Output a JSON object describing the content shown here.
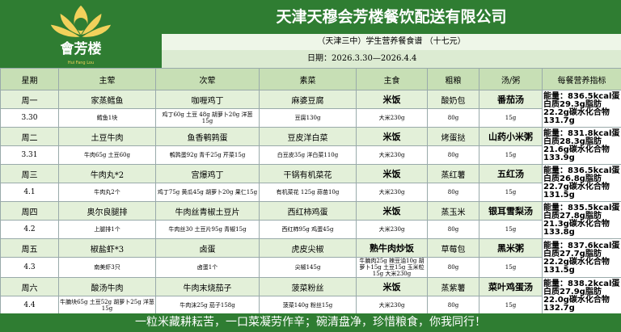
{
  "header": {
    "logo_text": "會芳楼",
    "logo_sub": "Hui Fang Lou",
    "title": "天津天穆会芳楼餐饮配送有限公司",
    "subtitle": "（天津三中）学生营养餐食谱 （十七元）",
    "date": "日期：2026.3.30—2026.4.4"
  },
  "table": {
    "columns": [
      "星期",
      "主荤",
      "次荤",
      "素菜",
      "主食",
      "粗粮",
      "汤/粥",
      "每餐营养指标"
    ],
    "days": [
      {
        "day": "周一",
        "date": "3.30",
        "dishes": [
          "家蒸鳕鱼",
          "咖喱鸡丁",
          "麻婆豆腐",
          "米饭",
          "酸奶包",
          "番茄汤"
        ],
        "details": [
          "鳕鱼1块",
          "鸡丁60g 土豆 48g 胡萝卜20g 洋葱15g",
          "豆腐130g",
          "大米230g",
          "80g",
          "15g"
        ],
        "nutrition": "能量：836.5kcal蛋白质29.3g脂肪22.2g碳水化合物131.7g"
      },
      {
        "day": "周二",
        "date": "3.31",
        "dishes": [
          "土豆牛肉",
          "鱼香鹌鹑蛋",
          "豆皮洋白菜",
          "米饭",
          "烤蛋挞",
          "山药小米粥"
        ],
        "details": [
          "牛肉65g 土豆60g",
          "鹌鹑蛋92g 青千25g 芹菜15g",
          "白豆皮35g 洋白菜110g",
          "大米230g",
          "80g",
          "15g"
        ],
        "nutrition": "能量：831.8kcal蛋白质28.3g脂肪21.6g碳水化合物133.9g"
      },
      {
        "day": "周三",
        "date": "4.1",
        "dishes": [
          "牛肉丸*2",
          "宫爆鸡丁",
          "干锅有机菜花",
          "米饭",
          "蒸红薯",
          "五红汤"
        ],
        "details": [
          "牛肉丸2个",
          "鸡丁75g 黄瓜45g 胡萝卜20g 果仁15g",
          "有机菜花 125g 蒜苗10g",
          "大米230g",
          "80g",
          "15g"
        ],
        "nutrition": "能量：836.5kcal蛋白质26.8g脂肪22.7g碳水化合物131.5g"
      },
      {
        "day": "周四",
        "date": "4.2",
        "dishes": [
          "奥尔良腿排",
          "牛肉丝青椒土豆片",
          "西红柿鸡蛋",
          "米饭",
          "蒸玉米",
          "银耳雪梨汤"
        ],
        "details": [
          "上腿排1个",
          "牛肉丝30 土豆片95g 青椒15g",
          "西红柿95g 鸡蛋45g",
          "大米230g",
          "80g",
          "15g"
        ],
        "nutrition": "能量：835.5kcal蛋白质27.8g脂肪21.3g碳水化合物133.8g"
      },
      {
        "day": "周五",
        "date": "4.3",
        "dishes": [
          "椒盐虾*3",
          "卤蛋",
          "虎皮尖椒",
          "熟牛肉炒饭",
          "草莓包",
          "黑米粥"
        ],
        "details": [
          "南美虾3只",
          "卤蛋1个",
          "尖椒145g",
          "牛腩肉25g 辣豆油10g 胡萝卜15g 土豆15g 玉米粒15g 大米230g",
          "80g",
          "15g"
        ],
        "nutrition": "能量：837.6kcal蛋白质27.7g脂肪22.2g碳水化合物131.5g"
      },
      {
        "day": "周六",
        "date": "4.4",
        "dishes": [
          "酸汤牛肉",
          "牛肉末烧茄子",
          "菠菜粉丝",
          "米饭",
          "蒸紫薯",
          "菜叶鸡蛋汤"
        ],
        "details": [
          "牛腩块65g 土豆52g 胡萝卜25g 洋葱15g",
          "牛肉沫25g 茄子158g",
          "菠菜140g 粉丝15g",
          "大米230g",
          "80g",
          "15g"
        ],
        "nutrition": "能量：838.2kcal蛋白质27.9g脂肪22.0g碳水化合物132.7g"
      }
    ]
  },
  "footer": "一粒米藏耕耘苦，一口菜凝劳作辛；碗清盘净，珍惜粮食，你我同行！"
}
